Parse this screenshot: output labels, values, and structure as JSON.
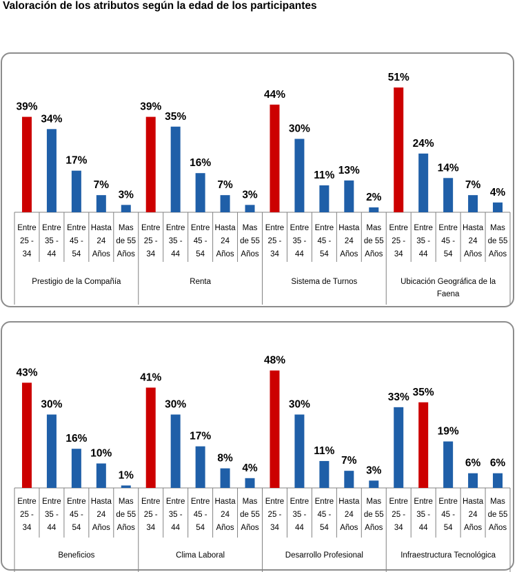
{
  "title": "Valoración de los atributos según la edad de los participantes",
  "colors": {
    "highlight": "#cc0000",
    "normal": "#1f5fa8",
    "axis": "#808080"
  },
  "chart_data": [
    {
      "type": "bar",
      "categories": [
        "Entre 25 - 34",
        "Entre 35 - 44",
        "Entre 45 - 54",
        "Hasta 24 Años",
        "Mas de 55 Años"
      ],
      "category_lines": [
        [
          "Entre",
          "25 -",
          "34"
        ],
        [
          "Entre",
          "35 -",
          "44"
        ],
        [
          "Entre",
          "45 -",
          "54"
        ],
        [
          "Hasta",
          "24",
          "Años"
        ],
        [
          "Mas",
          "de 55",
          "Años"
        ]
      ],
      "ylim": [
        0,
        55
      ],
      "groups": [
        {
          "label": [
            "Prestigio de la Compañía"
          ],
          "values": [
            39,
            34,
            17,
            7,
            3
          ],
          "labels": [
            "39%",
            "34%",
            "17%",
            "7%",
            "3%"
          ],
          "highlight": 0
        },
        {
          "label": [
            "Renta"
          ],
          "values": [
            39,
            35,
            16,
            7,
            3
          ],
          "labels": [
            "39%",
            "35%",
            "16%",
            "7%",
            "3%"
          ],
          "highlight": 0
        },
        {
          "label": [
            "Sistema de Turnos"
          ],
          "values": [
            44,
            30,
            11,
            13,
            2
          ],
          "labels": [
            "44%",
            "30%",
            "11%",
            "13%",
            "2%"
          ],
          "highlight": 0
        },
        {
          "label": [
            "Ubicación Geográfica de la",
            "Faena"
          ],
          "values": [
            51,
            24,
            14,
            7,
            4
          ],
          "labels": [
            "51%",
            "24%",
            "14%",
            "7%",
            "4%"
          ],
          "highlight": 0
        }
      ]
    },
    {
      "type": "bar",
      "categories": [
        "Entre 25 - 34",
        "Entre 35 - 44",
        "Entre 45 - 54",
        "Hasta 24 Años",
        "Mas de 55 Años"
      ],
      "category_lines": [
        [
          "Entre",
          "25 -",
          "34"
        ],
        [
          "Entre",
          "35 -",
          "44"
        ],
        [
          "Entre",
          "45 -",
          "54"
        ],
        [
          "Hasta",
          "24",
          "Años"
        ],
        [
          "Mas",
          "de 55",
          "Años"
        ]
      ],
      "ylim": [
        0,
        55
      ],
      "groups": [
        {
          "label": [
            "Beneficios"
          ],
          "values": [
            43,
            30,
            16,
            10,
            1
          ],
          "labels": [
            "43%",
            "30%",
            "16%",
            "10%",
            "1%"
          ],
          "highlight": 0
        },
        {
          "label": [
            "Clima Laboral"
          ],
          "values": [
            41,
            30,
            17,
            8,
            4
          ],
          "labels": [
            "41%",
            "30%",
            "17%",
            "8%",
            "4%"
          ],
          "highlight": 0
        },
        {
          "label": [
            "Desarrollo Profesional"
          ],
          "values": [
            48,
            30,
            11,
            7,
            3
          ],
          "labels": [
            "48%",
            "30%",
            "11%",
            "7%",
            "3%"
          ],
          "highlight": 0
        },
        {
          "label": [
            "Infraestructura Tecnológica"
          ],
          "values": [
            33,
            35,
            19,
            6,
            6
          ],
          "labels": [
            "33%",
            "35%",
            "19%",
            "6%",
            "6%"
          ],
          "highlight": 1
        }
      ]
    }
  ]
}
